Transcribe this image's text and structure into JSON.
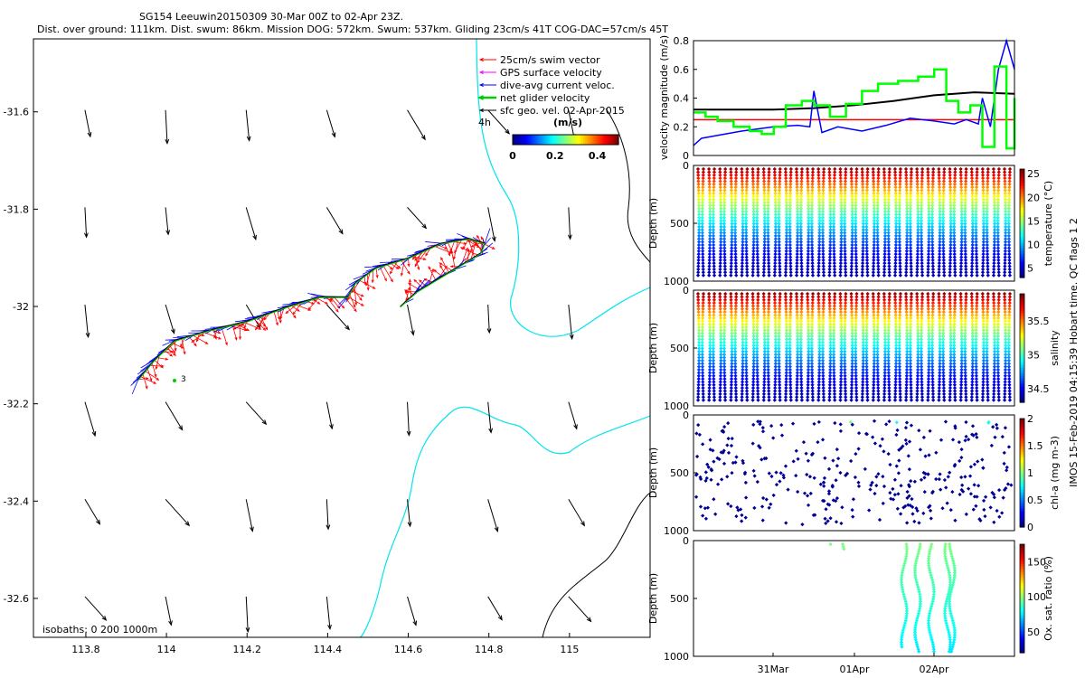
{
  "title": {
    "line1": "SG154 Leeuwin20150309 30-Mar 00Z to 02-Apr 23Z.",
    "line2": "Dist. over ground: 111km. Dist. swum: 86km. Mission DOG: 572km. Swum: 537km. Gliding 23cm/s 41T COG-DAC=57cm/s 45T"
  },
  "colors": {
    "swim": "#ff0000",
    "gps": "#ff00ff",
    "dac": "#0000ff",
    "net": "#00cc00",
    "geo": "#000000",
    "coast": "#00e5ee",
    "isobath": "#000000"
  },
  "chart_data": [
    {
      "type": "scatter",
      "panel": "map",
      "xlim": [
        113.67,
        115.2
      ],
      "ylim": [
        -32.68,
        -31.45
      ],
      "x_ticks": [
        "113.8",
        "114",
        "114.2",
        "114.4",
        "114.6",
        "114.8",
        "115"
      ],
      "y_ticks": [
        "-31.6",
        "-31.8",
        "-32",
        "-32.2",
        "-32.4",
        "-32.6"
      ],
      "legend": [
        "25cm/s swim vector",
        "GPS surface velocity",
        "dive-avg current veloc.",
        "net glider velocity",
        "sfc geo. vel. 02-Apr-2015"
      ],
      "legend_extra": "4h",
      "colorbar": {
        "label": "(m/s)",
        "ticks": [
          "0",
          "0.2",
          "0.4"
        ],
        "range": [
          0,
          0.5
        ]
      },
      "isobath_label": "isobaths: 0   200  1000m",
      "marker_label": "3",
      "track": {
        "lon": [
          113.93,
          113.97,
          114.02,
          114.1,
          114.2,
          114.3,
          114.38,
          114.45,
          114.47,
          114.52,
          114.6,
          114.68,
          114.75,
          114.79,
          114.78,
          114.7,
          114.62,
          114.58
        ],
        "lat": [
          -32.15,
          -32.11,
          -32.07,
          -32.05,
          -32.03,
          -32.0,
          -31.98,
          -31.98,
          -31.95,
          -31.92,
          -31.9,
          -31.87,
          -31.86,
          -31.87,
          -31.89,
          -31.93,
          -31.97,
          -32.0
        ]
      },
      "geo_grid": {
        "lon": [
          113.8,
          114.0,
          114.2,
          114.4,
          114.6,
          114.8,
          115.0
        ],
        "lat": [
          -31.6,
          -31.8,
          -32.0,
          -32.2,
          -32.4,
          -32.6
        ]
      }
    },
    {
      "type": "line",
      "panel": "velocity",
      "ylabel": "velocity magnitude (m/s)",
      "ylim": [
        0,
        0.8
      ],
      "y_ticks": [
        "0",
        "0.2",
        "0.4",
        "0.6",
        "0.8"
      ],
      "xlim_days": [
        0,
        4
      ],
      "series": [
        {
          "color": "red",
          "x": [
            0,
            4
          ],
          "y": [
            0.25,
            0.25
          ]
        },
        {
          "color": "black",
          "x": [
            0,
            0.5,
            1.0,
            1.5,
            2.0,
            2.5,
            3.0,
            3.5,
            4.0
          ],
          "y": [
            0.32,
            0.32,
            0.32,
            0.33,
            0.35,
            0.38,
            0.42,
            0.44,
            0.43
          ]
        },
        {
          "color": "blue",
          "x": [
            0,
            0.1,
            0.3,
            0.6,
            1.0,
            1.3,
            1.45,
            1.5,
            1.6,
            1.8,
            2.1,
            2.4,
            2.7,
            3.0,
            3.25,
            3.4,
            3.55,
            3.6,
            3.7,
            3.8,
            3.9,
            4.0
          ],
          "y": [
            0.07,
            0.12,
            0.14,
            0.17,
            0.2,
            0.21,
            0.2,
            0.45,
            0.16,
            0.2,
            0.17,
            0.21,
            0.26,
            0.24,
            0.22,
            0.25,
            0.22,
            0.4,
            0.2,
            0.6,
            0.8,
            0.6
          ]
        },
        {
          "color": "green",
          "x": [
            0,
            0.15,
            0.3,
            0.5,
            0.7,
            0.85,
            1.0,
            1.15,
            1.35,
            1.5,
            1.7,
            1.9,
            2.1,
            2.3,
            2.55,
            2.8,
            3.0,
            3.15,
            3.3,
            3.45,
            3.6,
            3.75,
            3.9,
            4.0
          ],
          "y": [
            0.3,
            0.27,
            0.24,
            0.2,
            0.17,
            0.15,
            0.2,
            0.35,
            0.38,
            0.35,
            0.27,
            0.36,
            0.45,
            0.5,
            0.52,
            0.55,
            0.6,
            0.38,
            0.3,
            0.35,
            0.06,
            0.62,
            0.05,
            0.4
          ]
        }
      ]
    },
    {
      "type": "scatter",
      "panel": "temperature",
      "ylabel": "Depth (m)",
      "cbar_label": "temperature (°C)",
      "cbar_ticks": [
        "5",
        "10",
        "15",
        "20",
        "25"
      ],
      "cbar_range": [
        3,
        26
      ],
      "ylim": [
        1000,
        0
      ],
      "y_ticks": [
        "0",
        "500",
        "1000"
      ],
      "profiles": 29
    },
    {
      "type": "scatter",
      "panel": "salinity",
      "ylabel": "Depth (m)",
      "cbar_label": "salinity",
      "cbar_ticks": [
        "34.5",
        "35",
        "35.5"
      ],
      "cbar_range": [
        34.3,
        35.9
      ],
      "ylim": [
        1000,
        0
      ],
      "y_ticks": [
        "0",
        "500",
        "1000"
      ],
      "profiles": 29
    },
    {
      "type": "scatter",
      "panel": "chlorophyll",
      "ylabel": "Depth (m)",
      "cbar_label": "chl-a (mg m-3)",
      "cbar_ticks": [
        "0",
        "0.5",
        "1",
        "1.5",
        "2"
      ],
      "cbar_range": [
        0,
        2
      ],
      "ylim": [
        1000,
        0
      ],
      "y_ticks": [
        "0",
        "500",
        "1000"
      ]
    },
    {
      "type": "scatter",
      "panel": "oxygen",
      "ylabel": "Depth (m)",
      "cbar_label": "Ox. sat. ratio (%)",
      "cbar_ticks": [
        "50",
        "100",
        "150"
      ],
      "cbar_range": [
        20,
        175
      ],
      "ylim": [
        1000,
        0
      ],
      "y_ticks": [
        "0",
        "500",
        "1000"
      ],
      "x_ticks": [
        "31Mar",
        "01Apr",
        "02Apr"
      ]
    }
  ],
  "side_note": "IMOS 15-Feb-2019 04:15:39 Hobart time. QC flags 1 2"
}
